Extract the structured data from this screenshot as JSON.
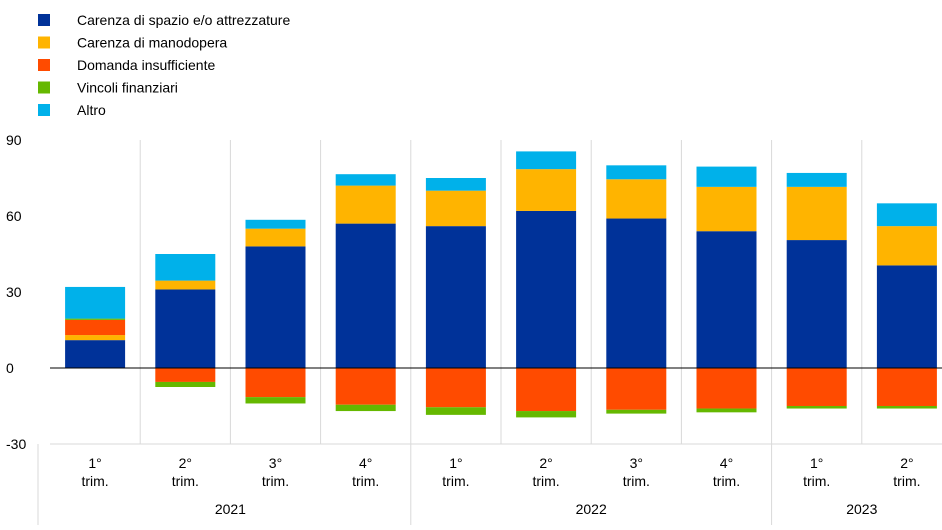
{
  "chart_data": {
    "type": "bar",
    "stacked": true,
    "legend": {
      "placement": "top-left",
      "entries": [
        "Carenza di spazio e/o attrezzature",
        "Carenza di manodopera",
        "Domanda insufficiente",
        "Vincoli finanziari",
        "Altro"
      ]
    },
    "ylim": [
      -30,
      90
    ],
    "yticks": [
      "90",
      "60",
      "30",
      "0",
      "-30"
    ],
    "grid": "vertical separators between categories",
    "categories": [
      {
        "quarter": [
          "1°",
          "trim."
        ]
      },
      {
        "quarter": [
          "2°",
          "trim."
        ]
      },
      {
        "quarter": [
          "3°",
          "trim."
        ]
      },
      {
        "quarter": [
          "4°",
          "trim."
        ]
      },
      {
        "quarter": [
          "1°",
          "trim."
        ]
      },
      {
        "quarter": [
          "2°",
          "trim."
        ]
      },
      {
        "quarter": [
          "3°",
          "trim."
        ]
      },
      {
        "quarter": [
          "4°",
          "trim."
        ]
      },
      {
        "quarter": [
          "1°",
          "trim."
        ]
      },
      {
        "quarter": [
          "2°",
          "trim."
        ]
      }
    ],
    "years": [
      {
        "label": "2021",
        "span": 4
      },
      {
        "label": "2022",
        "span": 4
      },
      {
        "label": "2023",
        "span": 2
      }
    ],
    "series": [
      {
        "name": "Carenza di spazio e/o attrezzature",
        "color": "#003299",
        "values": [
          11,
          31,
          48,
          57,
          56,
          62,
          59,
          54,
          50.5,
          40.5
        ]
      },
      {
        "name": "Carenza di manodopera",
        "color": "#ffb400",
        "values": [
          2,
          3.5,
          7,
          15,
          14,
          16.5,
          15.5,
          17.5,
          21,
          15.5
        ]
      },
      {
        "name": "Domanda insufficiente",
        "color": "#ff4b00",
        "values": [
          6,
          -5.5,
          -11.5,
          -14.5,
          -15.5,
          -17,
          -16.5,
          -16,
          -15,
          -15
        ]
      },
      {
        "name": "Vincoli finanziari",
        "color": "#65b800",
        "values": [
          0.5,
          -2,
          -2.5,
          -2.5,
          -3,
          -2.5,
          -1.5,
          -1.5,
          -1,
          -1
        ]
      },
      {
        "name": "Altro",
        "color": "#00b1ea",
        "values": [
          12.5,
          10.5,
          3.5,
          4.5,
          5,
          7,
          5.5,
          8,
          5.5,
          9
        ]
      }
    ]
  }
}
